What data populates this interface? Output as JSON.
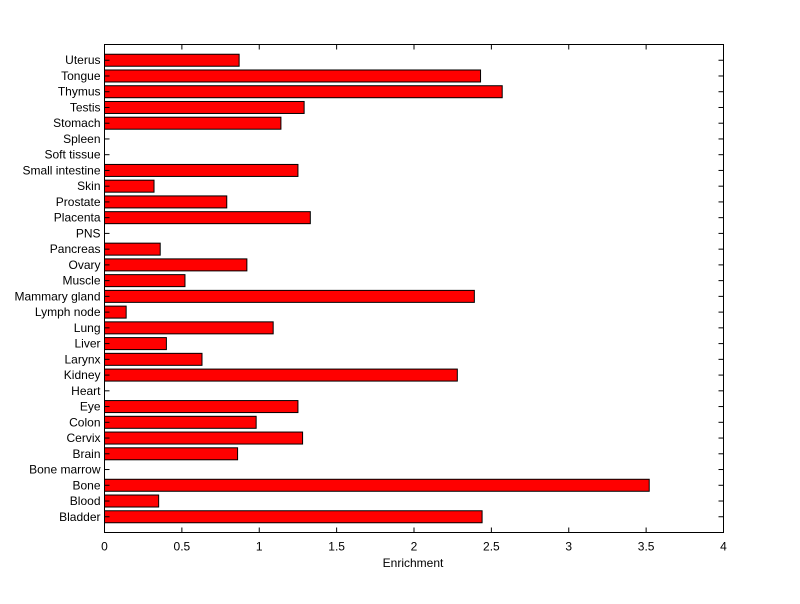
{
  "chart_data": {
    "type": "bar",
    "orientation": "horizontal",
    "title": "",
    "xlabel": "Enrichment",
    "ylabel": "",
    "xlim": [
      0,
      4
    ],
    "xticks": [
      0,
      0.5,
      1,
      1.5,
      2,
      2.5,
      3,
      3.5,
      4
    ],
    "xtick_labels": [
      "0",
      "0.5",
      "1",
      "1.5",
      "2",
      "2.5",
      "3",
      "3.5",
      "4"
    ],
    "grid": false,
    "bar_color": "#ff0000",
    "categories": [
      "Bladder",
      "Blood",
      "Bone",
      "Bone marrow",
      "Brain",
      "Cervix",
      "Colon",
      "Eye",
      "Heart",
      "Kidney",
      "Larynx",
      "Liver",
      "Lung",
      "Lymph node",
      "Mammary gland",
      "Muscle",
      "Ovary",
      "Pancreas",
      "PNS",
      "Placenta",
      "Prostate",
      "Skin",
      "Small intestine",
      "Soft tissue",
      "Spleen",
      "Stomach",
      "Testis",
      "Thymus",
      "Tongue",
      "Uterus"
    ],
    "values": [
      2.44,
      0.35,
      3.52,
      0,
      0.86,
      1.28,
      0.98,
      1.25,
      0,
      2.28,
      0.63,
      0.4,
      1.09,
      0.14,
      2.39,
      0.52,
      0.92,
      0.36,
      0,
      1.33,
      0.79,
      0.32,
      1.25,
      0,
      0,
      1.14,
      1.29,
      2.57,
      2.43,
      0.87
    ]
  }
}
